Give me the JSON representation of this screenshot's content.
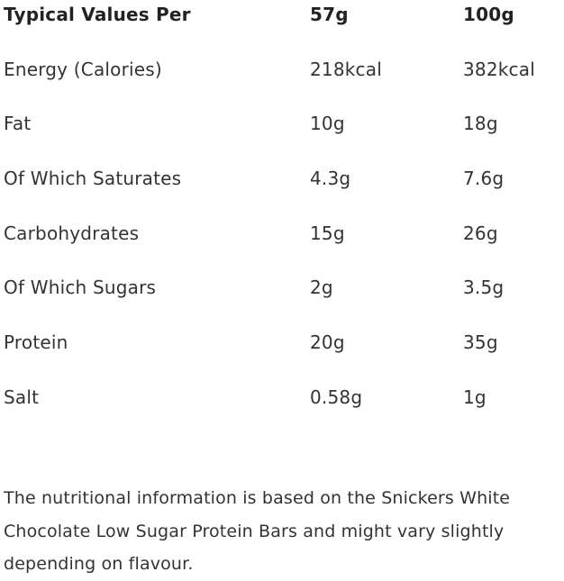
{
  "header": {
    "label": "Typical Values Per",
    "col1": "57g",
    "col2": "100g"
  },
  "rows": [
    {
      "label": "Energy (Calories)",
      "v57": "218kcal",
      "v100": "382kcal"
    },
    {
      "label": "Fat",
      "v57": "10g",
      "v100": "18g"
    },
    {
      "label": "Of Which Saturates",
      "v57": "4.3g",
      "v100": "7.6g"
    },
    {
      "label": "Carbohydrates",
      "v57": "15g",
      "v100": "26g"
    },
    {
      "label": "Of Which Sugars",
      "v57": "2g",
      "v100": "3.5g"
    },
    {
      "label": "Protein",
      "v57": "20g",
      "v100": "35g"
    },
    {
      "label": "Salt",
      "v57": "0.58g",
      "v100": "1g"
    }
  ],
  "note": "The nutritional information is based on the Snickers White Chocolate Low Sugar Protein Bars and might vary slightly depending on flavour."
}
